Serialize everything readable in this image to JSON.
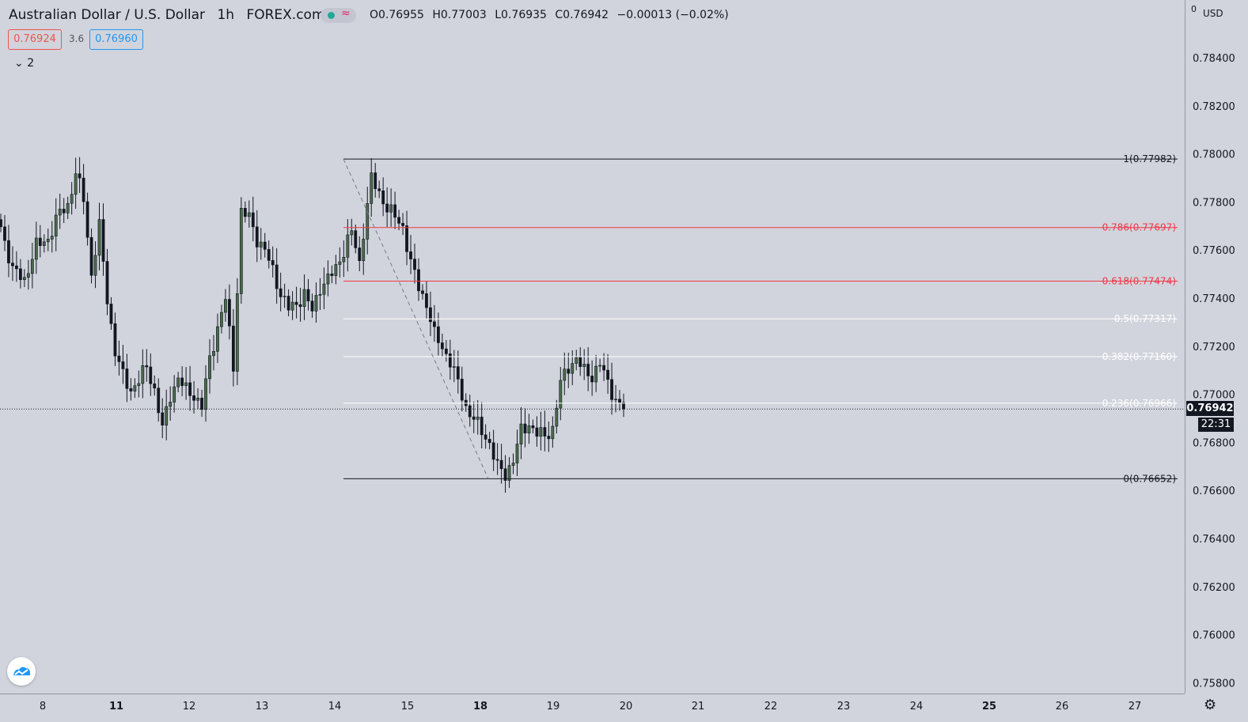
{
  "header": {
    "symbol": "Australian Dollar / U.S. Dollar",
    "interval": "1h",
    "exchange": "FOREX.com",
    "ohlc": {
      "open": "O0.76955",
      "high": "H0.77003",
      "low": "L0.76935",
      "close": "C0.76942",
      "change": "−0.00013 (−0.02%)"
    }
  },
  "trade": {
    "sell": "0.76924",
    "spread": "3.6",
    "buy": "0.76960"
  },
  "indicators_toggle": "2",
  "price_axis": {
    "currency": "USD",
    "top_tick": "0",
    "last_price": "0.76942",
    "countdown": "22:31"
  },
  "colors": {
    "background": "#d1d4dc",
    "candle_up": "#4a6b4a",
    "candle_down": "#131722",
    "fib_red": "#f23645",
    "fib_white": "#ffffff",
    "fib_black": "#131722"
  },
  "icons": {
    "status": "green-dot-icon",
    "wave": "wave-icon",
    "logo": "tradingview-logo-icon",
    "settings": "gear-icon",
    "collapse": "chevron-down-icon"
  },
  "chart_data": {
    "type": "candlestick",
    "title": "Australian Dollar / U.S. Dollar",
    "interval": "1h",
    "ylim": [
      0.7575,
      0.7855
    ],
    "y_ticks": [
      "0.78400",
      "0.78200",
      "0.78000",
      "0.77800",
      "0.77600",
      "0.77400",
      "0.77200",
      "0.77000",
      "0.76800",
      "0.76600",
      "0.76400",
      "0.76200",
      "0.76000",
      "0.75800"
    ],
    "x_ticks": [
      {
        "label": "8",
        "bold": false
      },
      {
        "label": "11",
        "bold": true
      },
      {
        "label": "12",
        "bold": false
      },
      {
        "label": "13",
        "bold": false
      },
      {
        "label": "14",
        "bold": false
      },
      {
        "label": "15",
        "bold": false
      },
      {
        "label": "18",
        "bold": true
      },
      {
        "label": "19",
        "bold": false
      },
      {
        "label": "20",
        "bold": false
      },
      {
        "label": "21",
        "bold": false
      },
      {
        "label": "22",
        "bold": false
      },
      {
        "label": "23",
        "bold": false
      },
      {
        "label": "24",
        "bold": false
      },
      {
        "label": "25",
        "bold": true
      },
      {
        "label": "26",
        "bold": false
      },
      {
        "label": "27",
        "bold": false
      }
    ],
    "fib_levels": [
      {
        "label": "1(0.77982)",
        "value": 0.77982,
        "color": "#131722"
      },
      {
        "label": "0.786(0.77697)",
        "value": 0.77697,
        "color": "#f23645"
      },
      {
        "label": "0.618(0.77474)",
        "value": 0.77474,
        "color": "#f23645"
      },
      {
        "label": "0.5(0.77317)",
        "value": 0.77317,
        "color": "#ffffff"
      },
      {
        "label": "0.382(0.77160)",
        "value": 0.7716,
        "color": "#ffffff"
      },
      {
        "label": "0.236(0.76966)",
        "value": 0.76966,
        "color": "#ffffff"
      },
      {
        "label": "0(0.76652)",
        "value": 0.76652,
        "color": "#131722"
      }
    ],
    "last_price": 0.76942,
    "close_path": [
      [
        0,
        0.777
      ],
      [
        3,
        0.7752
      ],
      [
        6,
        0.7748
      ],
      [
        9,
        0.7762
      ],
      [
        12,
        0.7765
      ],
      [
        15,
        0.7776
      ],
      [
        17,
        0.7779
      ],
      [
        19,
        0.7792
      ],
      [
        21,
        0.7782
      ],
      [
        23,
        0.775
      ],
      [
        25,
        0.777
      ],
      [
        27,
        0.774
      ],
      [
        29,
        0.7718
      ],
      [
        31,
        0.7708
      ],
      [
        33,
        0.7702
      ],
      [
        35,
        0.7706
      ],
      [
        37,
        0.7712
      ],
      [
        39,
        0.7702
      ],
      [
        41,
        0.7686
      ],
      [
        43,
        0.77
      ],
      [
        45,
        0.7707
      ],
      [
        47,
        0.7702
      ],
      [
        49,
        0.77
      ],
      [
        51,
        0.7695
      ],
      [
        53,
        0.7715
      ],
      [
        55,
        0.7728
      ],
      [
        57,
        0.774
      ],
      [
        59,
        0.7712
      ],
      [
        61,
        0.7776
      ],
      [
        63,
        0.7774
      ],
      [
        65,
        0.7765
      ],
      [
        67,
        0.776
      ],
      [
        69,
        0.7752
      ],
      [
        71,
        0.7742
      ],
      [
        73,
        0.7736
      ],
      [
        75,
        0.7738
      ],
      [
        77,
        0.7742
      ],
      [
        79,
        0.7735
      ],
      [
        81,
        0.7745
      ],
      [
        83,
        0.7748
      ],
      [
        85,
        0.7753
      ],
      [
        87,
        0.776
      ],
      [
        89,
        0.7768
      ],
      [
        91,
        0.7755
      ],
      [
        92,
        0.7768
      ],
      [
        94,
        0.779
      ],
      [
        96,
        0.7784
      ],
      [
        98,
        0.7778
      ],
      [
        100,
        0.7774
      ],
      [
        102,
        0.777
      ],
      [
        104,
        0.7755
      ],
      [
        106,
        0.7745
      ],
      [
        108,
        0.7738
      ],
      [
        110,
        0.7725
      ],
      [
        112,
        0.772
      ],
      [
        114,
        0.7714
      ],
      [
        116,
        0.7705
      ],
      [
        118,
        0.7695
      ],
      [
        120,
        0.769
      ],
      [
        122,
        0.7685
      ],
      [
        124,
        0.768
      ],
      [
        126,
        0.767
      ],
      [
        128,
        0.7667
      ],
      [
        130,
        0.7673
      ],
      [
        132,
        0.7685
      ],
      [
        134,
        0.7688
      ],
      [
        136,
        0.7684
      ],
      [
        138,
        0.7683
      ],
      [
        140,
        0.7686
      ],
      [
        142,
        0.7705
      ],
      [
        144,
        0.7712
      ],
      [
        146,
        0.7715
      ],
      [
        148,
        0.771
      ],
      [
        150,
        0.7708
      ],
      [
        152,
        0.7713
      ],
      [
        154,
        0.7705
      ],
      [
        156,
        0.7698
      ],
      [
        157,
        0.7696
      ],
      [
        158,
        0.76942
      ]
    ]
  }
}
